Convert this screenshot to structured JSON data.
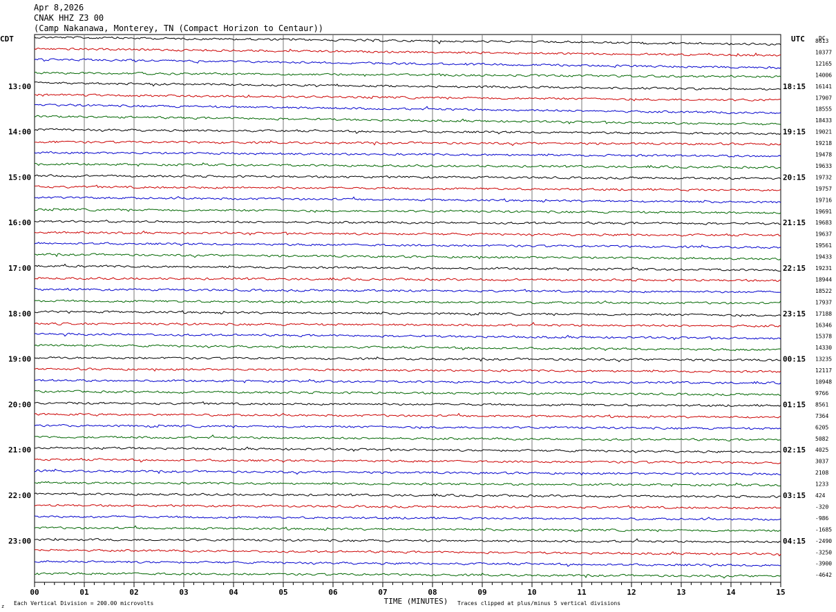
{
  "header": {
    "date": "Apr 8,2026",
    "station": "CNAK HHZ Z3 00",
    "location": "(Camp Nakanawa, Monterey, TN (Compact Horizon to Centaur))"
  },
  "chart_data": {
    "type": "line",
    "subtype": "helicorder",
    "left_axis_label": "CDT",
    "right_axis_label": "UTC",
    "dc_label": "DC",
    "xlabel": "TIME (MINUTES)",
    "xlim": [
      0,
      15
    ],
    "x_ticks": [
      "00",
      "01",
      "02",
      "03",
      "04",
      "05",
      "06",
      "07",
      "08",
      "09",
      "10",
      "11",
      "12",
      "13",
      "14",
      "15"
    ],
    "trace_colors": [
      "#000000",
      "#cc0000",
      "#0000cc",
      "#006600"
    ],
    "left_time_labels": [
      "13:00",
      "14:00",
      "15:00",
      "16:00",
      "17:00",
      "18:00",
      "19:00",
      "20:00",
      "21:00",
      "22:00",
      "23:00"
    ],
    "right_time_labels": [
      "18:15",
      "19:15",
      "20:15",
      "21:15",
      "22:15",
      "23:15",
      "00:15",
      "01:15",
      "02:15",
      "03:15",
      "04:15"
    ],
    "dc_offsets": [
      "8613",
      "10377",
      "12165",
      "14006",
      "16141",
      "17907",
      "18555",
      "18433",
      "19021",
      "19218",
      "19478",
      "19633",
      "19732",
      "19757",
      "19716",
      "19691",
      "19683",
      "19637",
      "19561",
      "19433",
      "19231",
      "18944",
      "18522",
      "17937",
      "17188",
      "16346",
      "15378",
      "14330",
      "13235",
      "12117",
      "10948",
      "9766",
      "8561",
      "7364",
      "6205",
      "5082",
      "4025",
      "3037",
      "2108",
      "1233",
      "424",
      "-320",
      "-986",
      "-1685",
      "-2490",
      "-3250",
      "-3900",
      "-4642"
    ],
    "footer_left": "Each Vertical Division =  200.00 microvolts",
    "footer_right": "Traces clipped at plus/minus 5 vertical divisions",
    "corner_mark": "z"
  }
}
